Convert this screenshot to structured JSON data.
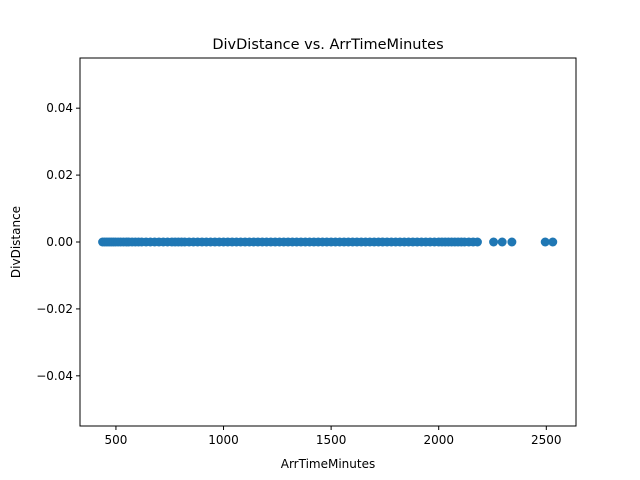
{
  "chart_data": {
    "type": "scatter",
    "title": "DivDistance vs. ArrTimeMinutes",
    "xlabel": "ArrTimeMinutes",
    "ylabel": "DivDistance",
    "xlim": [
      333,
      2638
    ],
    "ylim": [
      -0.055,
      0.055
    ],
    "xticks": [
      500,
      1000,
      1500,
      2000,
      2500
    ],
    "xtick_labels": [
      "500",
      "1000",
      "1500",
      "2000",
      "2500"
    ],
    "yticks": [
      -0.04,
      -0.02,
      0.0,
      0.02,
      0.04
    ],
    "ytick_labels": [
      "−0.04",
      "−0.02",
      "0.00",
      "0.02",
      "0.04"
    ],
    "grid": false,
    "color": "#1f77b4",
    "series": [
      {
        "x": [
          438,
          448,
          458,
          468,
          478,
          488,
          498,
          510,
          522,
          535,
          548,
          560,
          575,
          590,
          605,
          620,
          640,
          660,
          680,
          700,
          720,
          740,
          760,
          775,
          790,
          805,
          820,
          840,
          860,
          880,
          900,
          920,
          940,
          960,
          980,
          1000,
          1020,
          1040,
          1060,
          1080,
          1100,
          1120,
          1140,
          1160,
          1180,
          1200,
          1220,
          1240,
          1260,
          1280,
          1300,
          1320,
          1340,
          1360,
          1380,
          1400,
          1420,
          1440,
          1460,
          1480,
          1500,
          1520,
          1540,
          1560,
          1580,
          1600,
          1620,
          1640,
          1660,
          1680,
          1700,
          1720,
          1740,
          1760,
          1780,
          1800,
          1820,
          1840,
          1860,
          1880,
          1900,
          1920,
          1940,
          1960,
          1980,
          2000,
          2015,
          2030,
          2045,
          2060,
          2075,
          2090,
          2105,
          2120,
          2140,
          2160,
          2180,
          2255,
          2295,
          2340,
          2495,
          2530
        ],
        "y": [
          0,
          0,
          0,
          0,
          0,
          0,
          0,
          0,
          0,
          0,
          0,
          0,
          0,
          0,
          0,
          0,
          0,
          0,
          0,
          0,
          0,
          0,
          0,
          0,
          0,
          0,
          0,
          0,
          0,
          0,
          0,
          0,
          0,
          0,
          0,
          0,
          0,
          0,
          0,
          0,
          0,
          0,
          0,
          0,
          0,
          0,
          0,
          0,
          0,
          0,
          0,
          0,
          0,
          0,
          0,
          0,
          0,
          0,
          0,
          0,
          0,
          0,
          0,
          0,
          0,
          0,
          0,
          0,
          0,
          0,
          0,
          0,
          0,
          0,
          0,
          0,
          0,
          0,
          0,
          0,
          0,
          0,
          0,
          0,
          0,
          0,
          0,
          0,
          0,
          0,
          0,
          0,
          0,
          0,
          0,
          0,
          0,
          0,
          0,
          0,
          0,
          0
        ]
      }
    ]
  }
}
